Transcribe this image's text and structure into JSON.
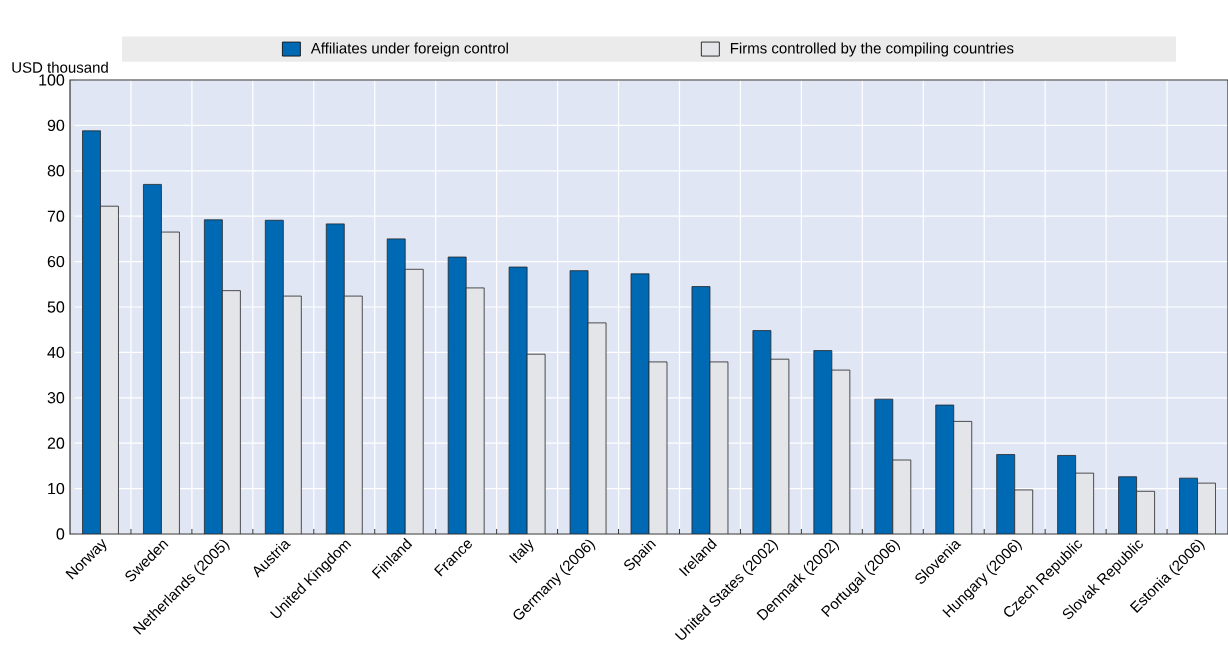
{
  "chart_data": {
    "type": "bar",
    "ylabel": "USD thousand",
    "categories": [
      "Norway",
      "Sweden",
      "Netherlands (2005)",
      "Austria",
      "United Kingdom",
      "Finland",
      "France",
      "Italy",
      "Germany (2006)",
      "Spain",
      "Ireland",
      "United States (2002)",
      "Denmark (2002)",
      "Portugal (2006)",
      "Slovenia",
      "Hungary (2006)",
      "Czech Republic",
      "Slovak Republic",
      "Estonia (2006)"
    ],
    "series": [
      {
        "name": "Affiliates under foreign control",
        "color": "#0069b4",
        "values": [
          88.8,
          77,
          69.2,
          69.1,
          68.3,
          65,
          61,
          58.8,
          58,
          57.3,
          54.5,
          44.8,
          40.4,
          29.7,
          28.4,
          17.5,
          17.3,
          12.6,
          12.3
        ]
      },
      {
        "name": "Firms controlled by the compiling countries",
        "color": "#e4e5e8",
        "values": [
          72.2,
          66.5,
          53.6,
          52.4,
          52.4,
          58.3,
          54.2,
          39.6,
          46.5,
          37.9,
          37.9,
          38.5,
          36.1,
          16.3,
          24.8,
          9.7,
          13.4,
          9.4,
          11.2
        ]
      }
    ],
    "ylim": [
      0,
      100
    ],
    "yticks": [
      0,
      10,
      20,
      30,
      40,
      50,
      60,
      70,
      80,
      90,
      100
    ],
    "grid": true,
    "legend": "top"
  }
}
